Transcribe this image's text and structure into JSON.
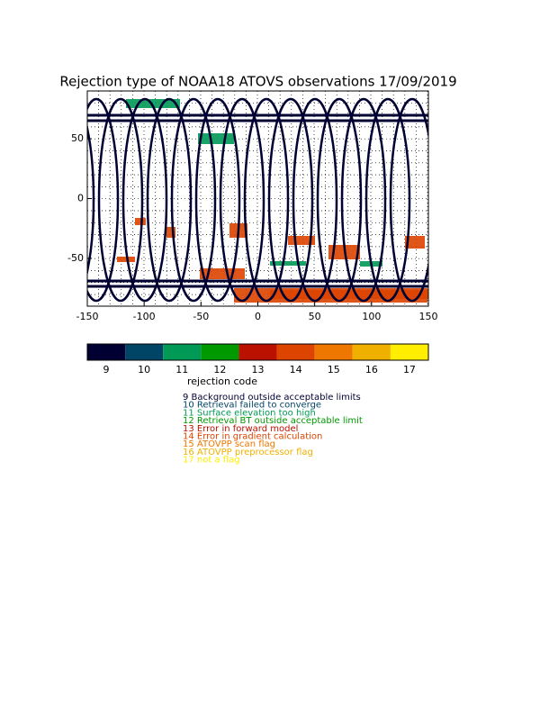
{
  "title": "Rejection type of NOAA18 ATOVS observations 17/09/2019",
  "map": {
    "xlim": [
      -150,
      150
    ],
    "ylim": [
      -90,
      90
    ],
    "xticks": [
      -150,
      -100,
      -50,
      0,
      50,
      100,
      150
    ],
    "yticks": [
      -50,
      0,
      50
    ]
  },
  "colorbar": {
    "codes": [
      9,
      10,
      11,
      12,
      13,
      14,
      15,
      16,
      17
    ],
    "colors": [
      "#000033",
      "#004466",
      "#009955",
      "#009900",
      "#bb1100",
      "#dd4400",
      "#ee7700",
      "#f0b000",
      "#ffee00"
    ],
    "label": "rejection code"
  },
  "legend": [
    "9 Background outside acceptable limits",
    "10 Retrieval failed to converge",
    "11 Surface elevation too high",
    "12 Retrieval BT outside acceptable limit",
    "13 Error in forward model",
    "14 Error in gradient calculation",
    "15  ATOVPP scan flag",
    "16 ATOVPP preprocessor flag",
    "17 not a flag"
  ]
}
